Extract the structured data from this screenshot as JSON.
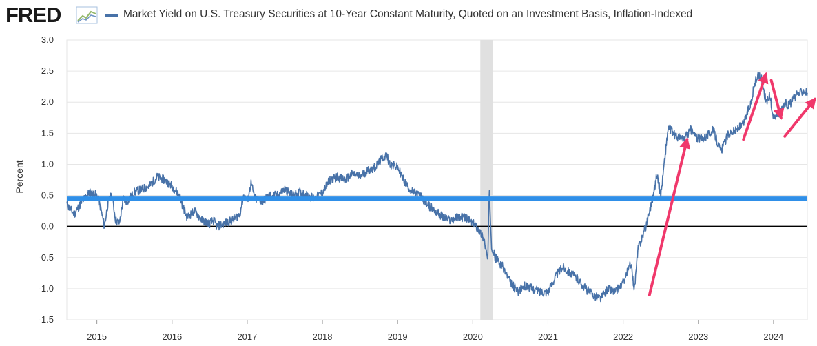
{
  "header": {
    "logo": "FRED",
    "series_label": "Market Yield on U.S. Treasury Securities at 10-Year Constant Maturity, Quoted on an Investment Basis, Inflation-Indexed"
  },
  "colors": {
    "series": "#4872a8",
    "reference_line": "#2f8fe8",
    "arrow": "#f0386b",
    "recession": "#e0e0e0",
    "gridline": "#e6e6e6"
  },
  "chart_data": {
    "type": "line",
    "title": "Market Yield on U.S. Treasury Securities at 10-Year Constant Maturity, Quoted on an Investment Basis, Inflation-Indexed",
    "xlabel": "",
    "ylabel": "Percent",
    "xlim": [
      2014.6,
      2024.45
    ],
    "ylim": [
      -1.5,
      3.0
    ],
    "x_tick_labels": [
      "2015",
      "2016",
      "2017",
      "2018",
      "2019",
      "2020",
      "2021",
      "2022",
      "2023",
      "2024"
    ],
    "y_tick_labels": [
      "3.0",
      "2.5",
      "2.0",
      "1.5",
      "1.0",
      "0.5",
      "0.0",
      "-0.5",
      "-1.0",
      "-1.5"
    ],
    "y_ticks": [
      3.0,
      2.5,
      2.0,
      1.5,
      1.0,
      0.5,
      0.0,
      -0.5,
      -1.0,
      -1.5
    ],
    "grid": true,
    "recession_band": [
      2020.1,
      2020.27
    ],
    "zero_line": 0.0,
    "annotation_horizontal_line": 0.45,
    "series": [
      {
        "name": "Market Yield on U.S. Treasury Securities at 10-Year Constant Maturity, Quoted on an Investment Basis, Inflation-Indexed",
        "x": [
          2014.6,
          2014.7,
          2014.8,
          2014.9,
          2015.0,
          2015.05,
          2015.1,
          2015.15,
          2015.2,
          2015.25,
          2015.3,
          2015.35,
          2015.4,
          2015.5,
          2015.6,
          2015.7,
          2015.8,
          2015.9,
          2016.0,
          2016.1,
          2016.15,
          2016.2,
          2016.3,
          2016.4,
          2016.5,
          2016.55,
          2016.6,
          2016.7,
          2016.8,
          2016.9,
          2016.95,
          2017.0,
          2017.05,
          2017.1,
          2017.2,
          2017.3,
          2017.4,
          2017.5,
          2017.6,
          2017.7,
          2017.8,
          2017.9,
          2018.0,
          2018.1,
          2018.2,
          2018.3,
          2018.4,
          2018.5,
          2018.6,
          2018.7,
          2018.8,
          2018.85,
          2018.9,
          2019.0,
          2019.1,
          2019.2,
          2019.3,
          2019.4,
          2019.5,
          2019.6,
          2019.7,
          2019.8,
          2019.9,
          2020.0,
          2020.05,
          2020.1,
          2020.15,
          2020.2,
          2020.22,
          2020.25,
          2020.3,
          2020.4,
          2020.5,
          2020.6,
          2020.7,
          2020.8,
          2020.9,
          2021.0,
          2021.1,
          2021.2,
          2021.3,
          2021.4,
          2021.5,
          2021.6,
          2021.7,
          2021.8,
          2021.9,
          2022.0,
          2022.1,
          2022.15,
          2022.2,
          2022.3,
          2022.35,
          2022.4,
          2022.45,
          2022.5,
          2022.6,
          2022.7,
          2022.8,
          2022.9,
          2023.0,
          2023.1,
          2023.2,
          2023.3,
          2023.4,
          2023.5,
          2023.6,
          2023.7,
          2023.75,
          2023.8,
          2023.85,
          2023.9,
          2023.95,
          2024.0,
          2024.05,
          2024.1,
          2024.15,
          2024.2,
          2024.3,
          2024.4,
          2024.45
        ],
        "values": [
          0.35,
          0.2,
          0.4,
          0.55,
          0.5,
          0.3,
          0.0,
          0.4,
          0.5,
          0.1,
          0.05,
          0.45,
          0.4,
          0.55,
          0.6,
          0.65,
          0.8,
          0.75,
          0.65,
          0.5,
          0.3,
          0.15,
          0.25,
          0.1,
          0.05,
          0.1,
          0.0,
          0.05,
          0.1,
          0.2,
          0.5,
          0.4,
          0.7,
          0.45,
          0.4,
          0.5,
          0.5,
          0.6,
          0.5,
          0.55,
          0.5,
          0.45,
          0.55,
          0.75,
          0.8,
          0.75,
          0.85,
          0.8,
          0.9,
          0.95,
          1.1,
          1.15,
          1.0,
          0.95,
          0.7,
          0.55,
          0.5,
          0.35,
          0.25,
          0.15,
          0.1,
          0.15,
          0.15,
          0.05,
          0.0,
          -0.1,
          -0.2,
          -0.55,
          0.6,
          -0.3,
          -0.5,
          -0.65,
          -0.9,
          -1.05,
          -0.95,
          -1.0,
          -1.05,
          -1.05,
          -0.8,
          -0.65,
          -0.75,
          -0.85,
          -1.0,
          -1.1,
          -1.15,
          -1.0,
          -1.05,
          -0.9,
          -0.6,
          -1.0,
          -0.35,
          0.0,
          0.25,
          0.5,
          0.85,
          0.5,
          1.6,
          1.45,
          1.4,
          1.55,
          1.4,
          1.45,
          1.55,
          1.2,
          1.5,
          1.55,
          1.65,
          2.0,
          2.3,
          2.45,
          2.35,
          2.0,
          2.1,
          1.75,
          1.8,
          1.85,
          2.0,
          1.95,
          2.1,
          2.2,
          2.15
        ]
      }
    ],
    "arrows": [
      {
        "from": [
          2022.35,
          -1.1
        ],
        "to": [
          2022.85,
          1.4
        ]
      },
      {
        "from": [
          2023.6,
          1.4
        ],
        "to": [
          2023.9,
          2.45
        ]
      },
      {
        "from": [
          2023.97,
          2.35
        ],
        "to": [
          2024.1,
          1.75
        ]
      },
      {
        "from": [
          2024.15,
          1.45
        ],
        "to": [
          2024.55,
          2.05
        ]
      }
    ]
  }
}
